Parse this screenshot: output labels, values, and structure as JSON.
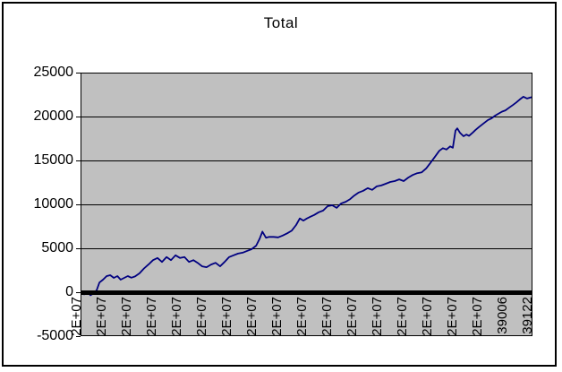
{
  "chart": {
    "background_color": "#ffffff",
    "plot_background_color": "#c0c0c0",
    "line_color": "#000080",
    "grid_color": "#000000",
    "axis_color": "#000000",
    "text_color": "#000000"
  },
  "chart_data": {
    "type": "line",
    "title": "Total",
    "xlabel": "",
    "ylabel": "",
    "legend": "none",
    "grid": "horizontal",
    "ylim": [
      -5000,
      25000
    ],
    "y_ticks": [
      25000,
      20000,
      15000,
      10000,
      5000,
      0,
      -5000
    ],
    "y_tick_labels": [
      "25000",
      "20000",
      "15000",
      "10000",
      "5000",
      "0",
      "-5000"
    ],
    "x_tick_labels": [
      "2E+07",
      "2E+07",
      "2E+07",
      "2E+07",
      "2E+07",
      "2E+07",
      "2E+07",
      "2E+07",
      "2E+07",
      "2E+07",
      "2E+07",
      "2E+07",
      "2E+07",
      "2E+07",
      "2E+07",
      "2E+07",
      "2E+07",
      "39006",
      "39122"
    ],
    "series": [
      {
        "name": "Total",
        "points": [
          [
            0,
            0
          ],
          [
            0.006,
            -250
          ],
          [
            0.012,
            100
          ],
          [
            0.02,
            -350
          ],
          [
            0.028,
            -100
          ],
          [
            0.034,
            250
          ],
          [
            0.04,
            1100
          ],
          [
            0.048,
            1430
          ],
          [
            0.056,
            1840
          ],
          [
            0.064,
            1940
          ],
          [
            0.072,
            1630
          ],
          [
            0.08,
            1840
          ],
          [
            0.087,
            1430
          ],
          [
            0.095,
            1630
          ],
          [
            0.103,
            1840
          ],
          [
            0.111,
            1650
          ],
          [
            0.119,
            1800
          ],
          [
            0.129,
            2150
          ],
          [
            0.139,
            2700
          ],
          [
            0.149,
            3150
          ],
          [
            0.159,
            3650
          ],
          [
            0.169,
            3900
          ],
          [
            0.179,
            3450
          ],
          [
            0.189,
            4000
          ],
          [
            0.199,
            3650
          ],
          [
            0.209,
            4200
          ],
          [
            0.219,
            3900
          ],
          [
            0.229,
            4000
          ],
          [
            0.239,
            3450
          ],
          [
            0.249,
            3650
          ],
          [
            0.258,
            3350
          ],
          [
            0.268,
            2950
          ],
          [
            0.278,
            2850
          ],
          [
            0.288,
            3150
          ],
          [
            0.298,
            3350
          ],
          [
            0.308,
            2950
          ],
          [
            0.318,
            3450
          ],
          [
            0.328,
            4000
          ],
          [
            0.338,
            4200
          ],
          [
            0.348,
            4400
          ],
          [
            0.358,
            4500
          ],
          [
            0.368,
            4700
          ],
          [
            0.378,
            4900
          ],
          [
            0.388,
            5300
          ],
          [
            0.396,
            6100
          ],
          [
            0.402,
            6900
          ],
          [
            0.41,
            6200
          ],
          [
            0.417,
            6300
          ],
          [
            0.427,
            6300
          ],
          [
            0.437,
            6250
          ],
          [
            0.447,
            6450
          ],
          [
            0.457,
            6700
          ],
          [
            0.467,
            7000
          ],
          [
            0.477,
            7650
          ],
          [
            0.485,
            8400
          ],
          [
            0.493,
            8150
          ],
          [
            0.501,
            8400
          ],
          [
            0.509,
            8600
          ],
          [
            0.517,
            8800
          ],
          [
            0.527,
            9100
          ],
          [
            0.537,
            9300
          ],
          [
            0.547,
            9800
          ],
          [
            0.557,
            9900
          ],
          [
            0.567,
            9600
          ],
          [
            0.577,
            10100
          ],
          [
            0.587,
            10300
          ],
          [
            0.597,
            10600
          ],
          [
            0.606,
            11000
          ],
          [
            0.616,
            11350
          ],
          [
            0.626,
            11550
          ],
          [
            0.636,
            11850
          ],
          [
            0.646,
            11650
          ],
          [
            0.656,
            12050
          ],
          [
            0.666,
            12150
          ],
          [
            0.676,
            12350
          ],
          [
            0.686,
            12550
          ],
          [
            0.696,
            12650
          ],
          [
            0.706,
            12850
          ],
          [
            0.716,
            12650
          ],
          [
            0.726,
            13050
          ],
          [
            0.736,
            13350
          ],
          [
            0.746,
            13550
          ],
          [
            0.756,
            13650
          ],
          [
            0.766,
            14100
          ],
          [
            0.775,
            14700
          ],
          [
            0.785,
            15400
          ],
          [
            0.795,
            16100
          ],
          [
            0.803,
            16400
          ],
          [
            0.811,
            16250
          ],
          [
            0.819,
            16600
          ],
          [
            0.825,
            16450
          ],
          [
            0.831,
            18400
          ],
          [
            0.835,
            18650
          ],
          [
            0.841,
            18150
          ],
          [
            0.849,
            17750
          ],
          [
            0.855,
            17950
          ],
          [
            0.861,
            17800
          ],
          [
            0.869,
            18150
          ],
          [
            0.875,
            18450
          ],
          [
            0.883,
            18800
          ],
          [
            0.893,
            19200
          ],
          [
            0.903,
            19600
          ],
          [
            0.911,
            19800
          ],
          [
            0.919,
            20100
          ],
          [
            0.927,
            20350
          ],
          [
            0.934,
            20550
          ],
          [
            0.942,
            20700
          ],
          [
            0.95,
            21000
          ],
          [
            0.958,
            21300
          ],
          [
            0.966,
            21600
          ],
          [
            0.974,
            21950
          ],
          [
            0.982,
            22250
          ],
          [
            0.99,
            22050
          ],
          [
            1,
            22200
          ]
        ]
      }
    ]
  }
}
